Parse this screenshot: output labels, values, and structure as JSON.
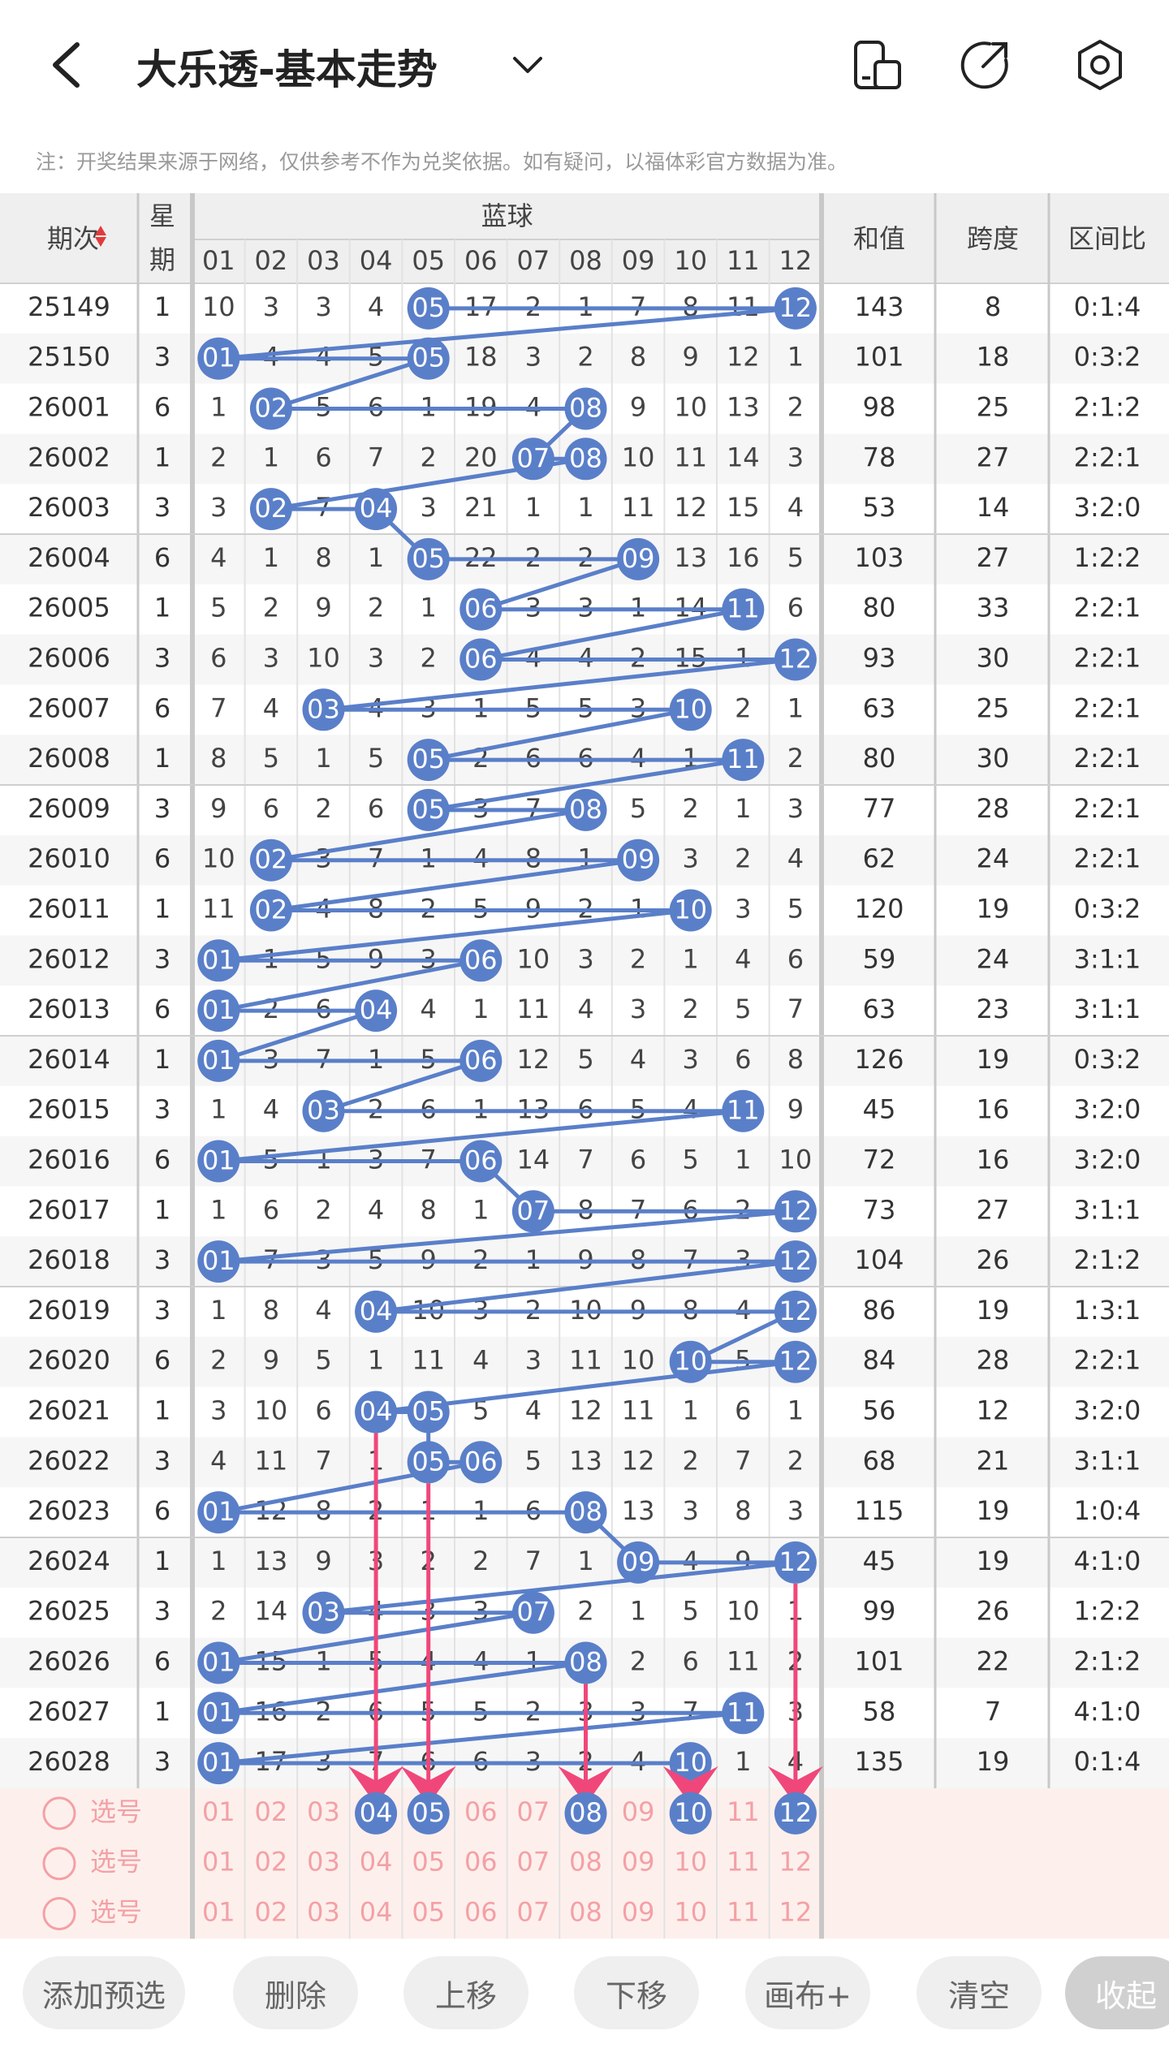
{
  "header": {
    "title": "大乐透-基本走势",
    "note": "注：开奖结果来源于网络，仅供参考不作为兑奖依据。如有疑问，以福体彩官方数据为准。"
  },
  "table": {
    "headers": {
      "period": "期次",
      "week": "星期",
      "group": "蓝球",
      "sum": "和值",
      "span": "跨度",
      "ratio": "区间比"
    },
    "columns": [
      "01",
      "02",
      "03",
      "04",
      "05",
      "06",
      "07",
      "08",
      "09",
      "10",
      "11",
      "12"
    ],
    "rows": [
      {
        "period": "25149",
        "week": "1",
        "cells": [
          "10",
          "3",
          "3",
          "4",
          "05",
          "17",
          "2",
          "1",
          "7",
          "8",
          "11",
          "12"
        ],
        "hits": [
          5,
          12
        ],
        "sum": "143",
        "span": "8",
        "ratio": "0:1:4"
      },
      {
        "period": "25150",
        "week": "3",
        "cells": [
          "01",
          "4",
          "4",
          "5",
          "05",
          "18",
          "3",
          "2",
          "8",
          "9",
          "12",
          "1"
        ],
        "hits": [
          1,
          5
        ],
        "sum": "101",
        "span": "18",
        "ratio": "0:3:2"
      },
      {
        "period": "26001",
        "week": "6",
        "cells": [
          "1",
          "02",
          "5",
          "6",
          "1",
          "19",
          "4",
          "08",
          "9",
          "10",
          "13",
          "2"
        ],
        "hits": [
          2,
          8
        ],
        "sum": "98",
        "span": "25",
        "ratio": "2:1:2"
      },
      {
        "period": "26002",
        "week": "1",
        "cells": [
          "2",
          "1",
          "6",
          "7",
          "2",
          "20",
          "07",
          "08",
          "10",
          "11",
          "14",
          "3"
        ],
        "hits": [
          7,
          8
        ],
        "sum": "78",
        "span": "27",
        "ratio": "2:2:1"
      },
      {
        "period": "26003",
        "week": "3",
        "cells": [
          "3",
          "02",
          "7",
          "04",
          "3",
          "21",
          "1",
          "1",
          "11",
          "12",
          "15",
          "4"
        ],
        "hits": [
          2,
          4
        ],
        "sum": "53",
        "span": "14",
        "ratio": "3:2:0"
      },
      {
        "period": "26004",
        "week": "6",
        "cells": [
          "4",
          "1",
          "8",
          "1",
          "05",
          "22",
          "2",
          "2",
          "09",
          "13",
          "16",
          "5"
        ],
        "hits": [
          5,
          9
        ],
        "sum": "103",
        "span": "27",
        "ratio": "1:2:2"
      },
      {
        "period": "26005",
        "week": "1",
        "cells": [
          "5",
          "2",
          "9",
          "2",
          "1",
          "06",
          "3",
          "3",
          "1",
          "14",
          "11",
          "6"
        ],
        "hits": [
          6,
          11
        ],
        "sum": "80",
        "span": "33",
        "ratio": "2:2:1"
      },
      {
        "period": "26006",
        "week": "3",
        "cells": [
          "6",
          "3",
          "10",
          "3",
          "2",
          "06",
          "4",
          "4",
          "2",
          "15",
          "1",
          "12"
        ],
        "hits": [
          6,
          12
        ],
        "sum": "93",
        "span": "30",
        "ratio": "2:2:1"
      },
      {
        "period": "26007",
        "week": "6",
        "cells": [
          "7",
          "4",
          "03",
          "4",
          "3",
          "1",
          "5",
          "5",
          "3",
          "10",
          "2",
          "1"
        ],
        "hits": [
          3,
          10
        ],
        "sum": "63",
        "span": "25",
        "ratio": "2:2:1"
      },
      {
        "period": "26008",
        "week": "1",
        "cells": [
          "8",
          "5",
          "1",
          "5",
          "05",
          "2",
          "6",
          "6",
          "4",
          "1",
          "11",
          "2"
        ],
        "hits": [
          5,
          11
        ],
        "sum": "80",
        "span": "30",
        "ratio": "2:2:1"
      },
      {
        "period": "26009",
        "week": "3",
        "cells": [
          "9",
          "6",
          "2",
          "6",
          "05",
          "3",
          "7",
          "08",
          "5",
          "2",
          "1",
          "3"
        ],
        "hits": [
          5,
          8
        ],
        "sum": "77",
        "span": "28",
        "ratio": "2:2:1"
      },
      {
        "period": "26010",
        "week": "6",
        "cells": [
          "10",
          "02",
          "3",
          "7",
          "1",
          "4",
          "8",
          "1",
          "09",
          "3",
          "2",
          "4"
        ],
        "hits": [
          2,
          9
        ],
        "sum": "62",
        "span": "24",
        "ratio": "2:2:1"
      },
      {
        "period": "26011",
        "week": "1",
        "cells": [
          "11",
          "02",
          "4",
          "8",
          "2",
          "5",
          "9",
          "2",
          "1",
          "10",
          "3",
          "5"
        ],
        "hits": [
          2,
          10
        ],
        "sum": "120",
        "span": "19",
        "ratio": "0:3:2"
      },
      {
        "period": "26012",
        "week": "3",
        "cells": [
          "01",
          "1",
          "5",
          "9",
          "3",
          "06",
          "10",
          "3",
          "2",
          "1",
          "4",
          "6"
        ],
        "hits": [
          1,
          6
        ],
        "sum": "59",
        "span": "24",
        "ratio": "3:1:1"
      },
      {
        "period": "26013",
        "week": "6",
        "cells": [
          "01",
          "2",
          "6",
          "04",
          "4",
          "1",
          "11",
          "4",
          "3",
          "2",
          "5",
          "7"
        ],
        "hits": [
          1,
          4
        ],
        "sum": "63",
        "span": "23",
        "ratio": "3:1:1"
      },
      {
        "period": "26014",
        "week": "1",
        "cells": [
          "01",
          "3",
          "7",
          "1",
          "5",
          "06",
          "12",
          "5",
          "4",
          "3",
          "6",
          "8"
        ],
        "hits": [
          1,
          6
        ],
        "sum": "126",
        "span": "19",
        "ratio": "0:3:2"
      },
      {
        "period": "26015",
        "week": "3",
        "cells": [
          "1",
          "4",
          "03",
          "2",
          "6",
          "1",
          "13",
          "6",
          "5",
          "4",
          "11",
          "9"
        ],
        "hits": [
          3,
          11
        ],
        "sum": "45",
        "span": "16",
        "ratio": "3:2:0"
      },
      {
        "period": "26016",
        "week": "6",
        "cells": [
          "01",
          "5",
          "1",
          "3",
          "7",
          "06",
          "14",
          "7",
          "6",
          "5",
          "1",
          "10"
        ],
        "hits": [
          1,
          6
        ],
        "sum": "72",
        "span": "16",
        "ratio": "3:2:0"
      },
      {
        "period": "26017",
        "week": "1",
        "cells": [
          "1",
          "6",
          "2",
          "4",
          "8",
          "1",
          "07",
          "8",
          "7",
          "6",
          "2",
          "12"
        ],
        "hits": [
          7,
          12
        ],
        "sum": "73",
        "span": "27",
        "ratio": "3:1:1"
      },
      {
        "period": "26018",
        "week": "3",
        "cells": [
          "01",
          "7",
          "3",
          "5",
          "9",
          "2",
          "1",
          "9",
          "8",
          "7",
          "3",
          "12"
        ],
        "hits": [
          1,
          12
        ],
        "sum": "104",
        "span": "26",
        "ratio": "2:1:2"
      },
      {
        "period": "26019",
        "week": "3",
        "cells": [
          "1",
          "8",
          "4",
          "04",
          "10",
          "3",
          "2",
          "10",
          "9",
          "8",
          "4",
          "12"
        ],
        "hits": [
          4,
          12
        ],
        "sum": "86",
        "span": "19",
        "ratio": "1:3:1"
      },
      {
        "period": "26020",
        "week": "6",
        "cells": [
          "2",
          "9",
          "5",
          "1",
          "11",
          "4",
          "3",
          "11",
          "10",
          "10",
          "5",
          "12"
        ],
        "hits": [
          10,
          12
        ],
        "sum": "84",
        "span": "28",
        "ratio": "2:2:1"
      },
      {
        "period": "26021",
        "week": "1",
        "cells": [
          "3",
          "10",
          "6",
          "04",
          "05",
          "5",
          "4",
          "12",
          "11",
          "1",
          "6",
          "1"
        ],
        "hits": [
          4,
          5
        ],
        "sum": "56",
        "span": "12",
        "ratio": "3:2:0"
      },
      {
        "period": "26022",
        "week": "3",
        "cells": [
          "4",
          "11",
          "7",
          "1",
          "05",
          "06",
          "5",
          "13",
          "12",
          "2",
          "7",
          "2"
        ],
        "hits": [
          5,
          6
        ],
        "sum": "68",
        "span": "21",
        "ratio": "3:1:1"
      },
      {
        "period": "26023",
        "week": "6",
        "cells": [
          "01",
          "12",
          "8",
          "2",
          "1",
          "1",
          "6",
          "08",
          "13",
          "3",
          "8",
          "3"
        ],
        "hits": [
          1,
          8
        ],
        "sum": "115",
        "span": "19",
        "ratio": "1:0:4"
      },
      {
        "period": "26024",
        "week": "1",
        "cells": [
          "1",
          "13",
          "9",
          "3",
          "2",
          "2",
          "7",
          "1",
          "09",
          "4",
          "9",
          "12"
        ],
        "hits": [
          9,
          12
        ],
        "sum": "45",
        "span": "19",
        "ratio": "4:1:0"
      },
      {
        "period": "26025",
        "week": "3",
        "cells": [
          "2",
          "14",
          "03",
          "4",
          "3",
          "3",
          "07",
          "2",
          "1",
          "5",
          "10",
          "1"
        ],
        "hits": [
          3,
          7
        ],
        "sum": "99",
        "span": "26",
        "ratio": "1:2:2"
      },
      {
        "period": "26026",
        "week": "6",
        "cells": [
          "01",
          "15",
          "1",
          "5",
          "4",
          "4",
          "1",
          "08",
          "2",
          "6",
          "11",
          "2"
        ],
        "hits": [
          1,
          8
        ],
        "sum": "101",
        "span": "22",
        "ratio": "2:1:2"
      },
      {
        "period": "26027",
        "week": "1",
        "cells": [
          "01",
          "16",
          "2",
          "6",
          "5",
          "5",
          "2",
          "3",
          "3",
          "7",
          "11",
          "3"
        ],
        "hits": [
          1,
          11
        ],
        "sum": "58",
        "span": "7",
        "ratio": "4:1:0"
      },
      {
        "period": "26028",
        "week": "3",
        "cells": [
          "01",
          "17",
          "3",
          "7",
          "6",
          "6",
          "3",
          "2",
          "4",
          "10",
          "1",
          "4"
        ],
        "hits": [
          1,
          10
        ],
        "sum": "135",
        "span": "19",
        "ratio": "0:1:4"
      }
    ],
    "select_rows": [
      {
        "label": "选号",
        "selected": [
          4,
          5,
          8,
          10,
          12
        ]
      },
      {
        "label": "选号",
        "selected": []
      },
      {
        "label": "选号",
        "selected": []
      }
    ]
  },
  "toolbar": [
    "添加预选",
    "删除",
    "上移",
    "下移",
    "画布+",
    "清空",
    "收起"
  ],
  "colors": {
    "ball": "#5a7fc9",
    "line": "#5a7fc9",
    "arrow": "#f0477a",
    "select_text": "#f4a0a6",
    "select_bg": "#fdf0ec"
  }
}
